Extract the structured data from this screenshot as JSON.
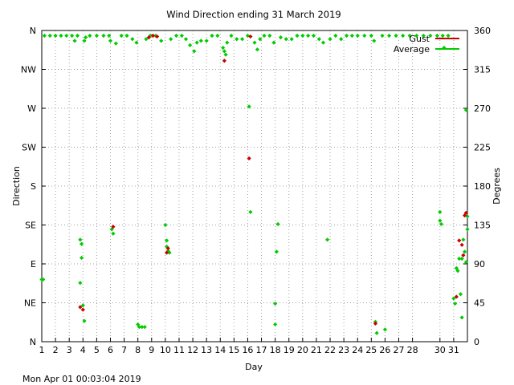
{
  "chart_data": {
    "type": "scatter",
    "title": "Wind Direction ending 31 March 2019",
    "xlabel": "Day",
    "ylabel_left": "Direction",
    "ylabel_right": "Degrees",
    "footer": "Mon Apr 01 00:03:04 2019",
    "grid": true,
    "legend_placement": "top-right",
    "xlim": [
      1,
      32
    ],
    "ylim": [
      0,
      360
    ],
    "x_ticks": [
      1,
      2,
      3,
      4,
      5,
      6,
      7,
      8,
      9,
      10,
      11,
      12,
      13,
      14,
      15,
      16,
      17,
      18,
      19,
      20,
      21,
      22,
      23,
      24,
      25,
      26,
      27,
      28,
      30,
      31
    ],
    "y_ticks_left": [
      {
        "value": 0,
        "label": "N"
      },
      {
        "value": 45,
        "label": "NE"
      },
      {
        "value": 90,
        "label": "E"
      },
      {
        "value": 135,
        "label": "SE"
      },
      {
        "value": 180,
        "label": "S"
      },
      {
        "value": 225,
        "label": "SW"
      },
      {
        "value": 270,
        "label": "W"
      },
      {
        "value": 315,
        "label": "NW"
      },
      {
        "value": 360,
        "label": "N"
      }
    ],
    "y_ticks_right": [
      0,
      45,
      90,
      135,
      180,
      225,
      270,
      315,
      360
    ],
    "series": [
      {
        "name": "Gust",
        "color": "#cc0000",
        "points": [
          [
            3.8,
            40
          ],
          [
            4.0,
            37
          ],
          [
            6.2,
            133
          ],
          [
            8.8,
            352
          ],
          [
            9.1,
            354
          ],
          [
            9.4,
            353
          ],
          [
            10.1,
            103
          ],
          [
            10.2,
            108
          ],
          [
            14.3,
            325
          ],
          [
            16.1,
            212
          ],
          [
            16.2,
            353
          ],
          [
            25.3,
            21
          ],
          [
            31.2,
            52
          ],
          [
            31.4,
            117
          ],
          [
            31.6,
            112
          ],
          [
            31.7,
            100
          ],
          [
            31.8,
            146
          ],
          [
            31.9,
            149
          ]
        ]
      },
      {
        "name": "Average",
        "color": "#00cc00",
        "points": [
          [
            1.0,
            72
          ],
          [
            1.1,
            72
          ],
          [
            1.2,
            354
          ],
          [
            1.6,
            354
          ],
          [
            2.0,
            354
          ],
          [
            2.4,
            354
          ],
          [
            2.8,
            354
          ],
          [
            3.2,
            354
          ],
          [
            3.4,
            348
          ],
          [
            3.6,
            354
          ],
          [
            3.8,
            118
          ],
          [
            3.9,
            113
          ],
          [
            3.9,
            97
          ],
          [
            3.8,
            68
          ],
          [
            4.0,
            42
          ],
          [
            4.1,
            24
          ],
          [
            4.1,
            348
          ],
          [
            4.2,
            352
          ],
          [
            4.5,
            354
          ],
          [
            5.0,
            354
          ],
          [
            5.5,
            354
          ],
          [
            5.9,
            354
          ],
          [
            6.0,
            348
          ],
          [
            6.1,
            130
          ],
          [
            6.2,
            125
          ],
          [
            6.4,
            345
          ],
          [
            6.8,
            354
          ],
          [
            7.2,
            354
          ],
          [
            7.6,
            350
          ],
          [
            7.9,
            346
          ],
          [
            8.0,
            20
          ],
          [
            8.1,
            17
          ],
          [
            8.3,
            17
          ],
          [
            8.5,
            17
          ],
          [
            8.6,
            350
          ],
          [
            8.9,
            354
          ],
          [
            9.3,
            354
          ],
          [
            9.7,
            348
          ],
          [
            10.0,
            135
          ],
          [
            10.1,
            117
          ],
          [
            10.1,
            110
          ],
          [
            10.2,
            105
          ],
          [
            10.3,
            103
          ],
          [
            10.4,
            350
          ],
          [
            10.8,
            354
          ],
          [
            11.2,
            354
          ],
          [
            11.5,
            350
          ],
          [
            11.8,
            343
          ],
          [
            12.1,
            336
          ],
          [
            12.3,
            346
          ],
          [
            12.6,
            348
          ],
          [
            13.0,
            348
          ],
          [
            13.4,
            354
          ],
          [
            13.8,
            354
          ],
          [
            14.2,
            340
          ],
          [
            14.3,
            336
          ],
          [
            14.4,
            332
          ],
          [
            14.5,
            346
          ],
          [
            14.8,
            354
          ],
          [
            15.2,
            350
          ],
          [
            15.6,
            350
          ],
          [
            16.0,
            354
          ],
          [
            16.1,
            272
          ],
          [
            16.2,
            150
          ],
          [
            16.5,
            346
          ],
          [
            16.7,
            338
          ],
          [
            16.9,
            350
          ],
          [
            17.2,
            354
          ],
          [
            17.6,
            354
          ],
          [
            17.9,
            346
          ],
          [
            18.0,
            20
          ],
          [
            18.0,
            44
          ],
          [
            18.1,
            104
          ],
          [
            18.2,
            136
          ],
          [
            18.4,
            352
          ],
          [
            18.8,
            350
          ],
          [
            19.2,
            350
          ],
          [
            19.6,
            354
          ],
          [
            20.0,
            354
          ],
          [
            20.4,
            354
          ],
          [
            20.8,
            354
          ],
          [
            21.2,
            350
          ],
          [
            21.5,
            346
          ],
          [
            21.8,
            118
          ],
          [
            22.0,
            350
          ],
          [
            22.4,
            354
          ],
          [
            22.8,
            350
          ],
          [
            23.2,
            354
          ],
          [
            23.6,
            354
          ],
          [
            24.0,
            354
          ],
          [
            24.5,
            354
          ],
          [
            25.0,
            354
          ],
          [
            25.2,
            348
          ],
          [
            25.3,
            23
          ],
          [
            25.4,
            10
          ],
          [
            25.8,
            354
          ],
          [
            26.0,
            14
          ],
          [
            26.3,
            354
          ],
          [
            26.8,
            354
          ],
          [
            27.3,
            354
          ],
          [
            27.8,
            354
          ],
          [
            28.3,
            354
          ],
          [
            28.8,
            354
          ],
          [
            29.3,
            354
          ],
          [
            29.8,
            354
          ],
          [
            30.0,
            150
          ],
          [
            30.0,
            140
          ],
          [
            30.1,
            136
          ],
          [
            30.2,
            354
          ],
          [
            30.3,
            340
          ],
          [
            30.6,
            354
          ],
          [
            31.0,
            50
          ],
          [
            31.1,
            44
          ],
          [
            31.2,
            85
          ],
          [
            31.3,
            82
          ],
          [
            31.4,
            96
          ],
          [
            31.5,
            55
          ],
          [
            31.6,
            28
          ],
          [
            31.6,
            96
          ],
          [
            31.7,
            118
          ],
          [
            31.8,
            104
          ],
          [
            31.9,
            268
          ],
          [
            31.9,
            92
          ],
          [
            32.0,
            145
          ],
          [
            32.0,
            130
          ]
        ]
      }
    ]
  }
}
